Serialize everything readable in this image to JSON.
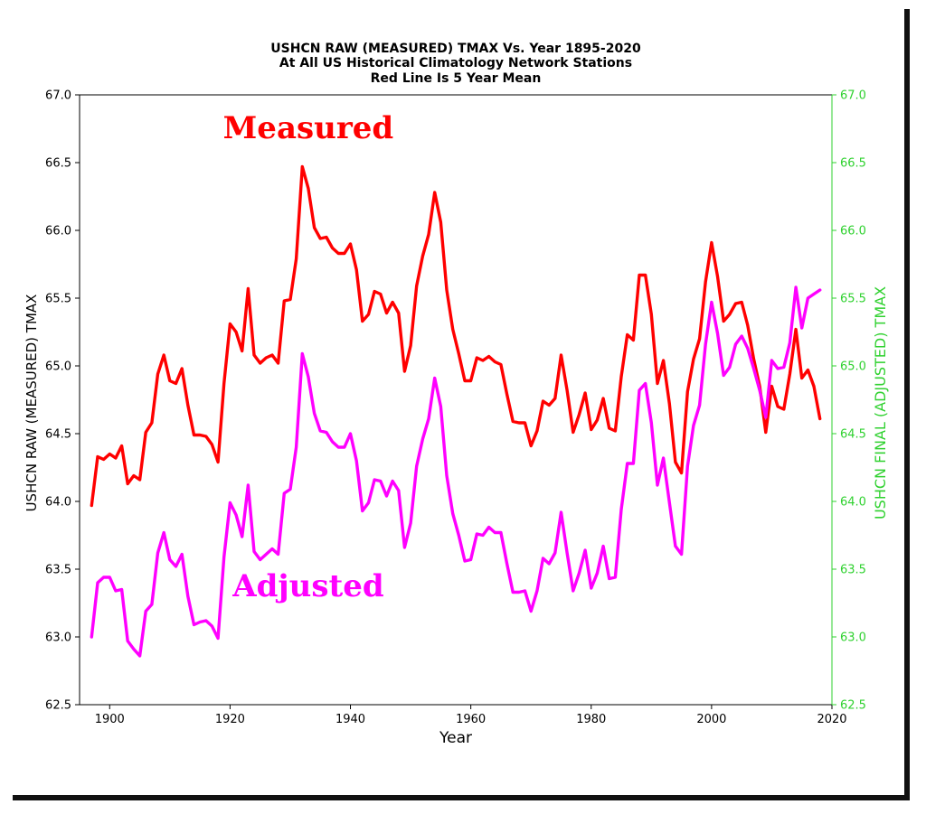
{
  "chart_data": {
    "type": "line",
    "title_lines": [
      "USHCN RAW (MEASURED) TMAX Vs. Year 1895-2020",
      "At All US Historical Climatology Network Stations",
      "Red Line Is 5 Year Mean"
    ],
    "xlabel": "Year",
    "ylabel": "USHCN RAW (MEASURED) TMAX",
    "ylabel_right": "USHCN FINAL (ADJUSTED) TMAX",
    "xlim": [
      1895,
      2020
    ],
    "ylim": [
      62.5,
      67.0
    ],
    "ylim_right": [
      62.5,
      67.0
    ],
    "x_ticks": [
      "1900",
      "1920",
      "1940",
      "1960",
      "1980",
      "2000",
      "2020"
    ],
    "y_ticks": [
      "62.5",
      "63.0",
      "63.5",
      "64.0",
      "64.5",
      "65.0",
      "65.5",
      "66.0",
      "66.5",
      "67.0"
    ],
    "y_ticks_right": [
      "62.5",
      "63.0",
      "63.5",
      "64.0",
      "64.5",
      "65.0",
      "65.5",
      "66.0",
      "66.5",
      "67.0"
    ],
    "grid": false,
    "colors": {
      "measured": "#ff0000",
      "adjusted": "#ff00ff",
      "right_axis": "#2fd12f"
    },
    "annotations": [
      {
        "text": "Measured",
        "color": "#ff0000",
        "x": 1933,
        "y": 66.68
      },
      {
        "text": "Adjusted",
        "color": "#ff00ff",
        "x": 1933,
        "y": 63.3
      }
    ],
    "series": [
      {
        "key": "measured",
        "x": [
          1897,
          1898,
          1899,
          1900,
          1901,
          1902,
          1903,
          1904,
          1905,
          1906,
          1907,
          1908,
          1909,
          1910,
          1911,
          1912,
          1913,
          1914,
          1915,
          1916,
          1917,
          1918,
          1919,
          1920,
          1921,
          1922,
          1923,
          1924,
          1925,
          1926,
          1927,
          1928,
          1929,
          1930,
          1931,
          1932,
          1933,
          1934,
          1935,
          1936,
          1937,
          1938,
          1939,
          1940,
          1941,
          1942,
          1943,
          1944,
          1945,
          1946,
          1947,
          1948,
          1949,
          1950,
          1951,
          1952,
          1953,
          1954,
          1955,
          1956,
          1957,
          1958,
          1959,
          1960,
          1961,
          1962,
          1963,
          1964,
          1965,
          1966,
          1967,
          1968,
          1969,
          1970,
          1971,
          1972,
          1973,
          1974,
          1975,
          1976,
          1977,
          1978,
          1979,
          1980,
          1981,
          1982,
          1983,
          1984,
          1985,
          1986,
          1987,
          1988,
          1989,
          1990,
          1991,
          1992,
          1993,
          1994,
          1995,
          1996,
          1997,
          1998,
          1999,
          2000,
          2001,
          2002,
          2003,
          2004,
          2005,
          2006,
          2007,
          2008,
          2009,
          2010,
          2011,
          2012,
          2013,
          2014,
          2015,
          2016,
          2017,
          2018
        ],
        "y": [
          63.97,
          64.33,
          64.31,
          64.35,
          64.32,
          64.41,
          64.13,
          64.19,
          64.16,
          64.51,
          64.58,
          64.94,
          65.08,
          64.89,
          64.87,
          64.98,
          64.71,
          64.49,
          64.49,
          64.48,
          64.42,
          64.29,
          64.87,
          65.31,
          65.25,
          65.11,
          65.57,
          65.08,
          65.02,
          65.06,
          65.08,
          65.02,
          65.48,
          65.49,
          65.79,
          66.47,
          66.31,
          66.02,
          65.94,
          65.95,
          65.87,
          65.83,
          65.83,
          65.9,
          65.71,
          65.33,
          65.38,
          65.55,
          65.53,
          65.39,
          65.47,
          65.39,
          64.96,
          65.15,
          65.59,
          65.81,
          65.97,
          66.28,
          66.06,
          65.56,
          65.27,
          65.09,
          64.89,
          64.89,
          65.06,
          65.04,
          65.07,
          65.03,
          65.01,
          64.79,
          64.59,
          64.58,
          64.58,
          64.41,
          64.52,
          64.74,
          64.71,
          64.76,
          65.08,
          64.82,
          64.51,
          64.64,
          64.8,
          64.53,
          64.6,
          64.76,
          64.54,
          64.52,
          64.92,
          65.23,
          65.19,
          65.67,
          65.67,
          65.38,
          64.87,
          65.04,
          64.72,
          64.29,
          64.21,
          64.81,
          65.05,
          65.2,
          65.62,
          65.91,
          65.66,
          65.33,
          65.38,
          65.46,
          65.47,
          65.3,
          65.05,
          64.85,
          64.51,
          64.85,
          64.7,
          64.68,
          64.94,
          65.27,
          64.91,
          64.97,
          64.85,
          64.61
        ]
      },
      {
        "key": "adjusted",
        "x": [
          1897,
          1898,
          1899,
          1900,
          1901,
          1902,
          1903,
          1904,
          1905,
          1906,
          1907,
          1908,
          1909,
          1910,
          1911,
          1912,
          1913,
          1914,
          1915,
          1916,
          1917,
          1918,
          1919,
          1920,
          1921,
          1922,
          1923,
          1924,
          1925,
          1926,
          1927,
          1928,
          1929,
          1930,
          1931,
          1932,
          1933,
          1934,
          1935,
          1936,
          1937,
          1938,
          1939,
          1940,
          1941,
          1942,
          1943,
          1944,
          1945,
          1946,
          1947,
          1948,
          1949,
          1950,
          1951,
          1952,
          1953,
          1954,
          1955,
          1956,
          1957,
          1958,
          1959,
          1960,
          1961,
          1962,
          1963,
          1964,
          1965,
          1966,
          1967,
          1968,
          1969,
          1970,
          1971,
          1972,
          1973,
          1974,
          1975,
          1976,
          1977,
          1978,
          1979,
          1980,
          1981,
          1982,
          1983,
          1984,
          1985,
          1986,
          1987,
          1988,
          1989,
          1990,
          1991,
          1992,
          1993,
          1994,
          1995,
          1996,
          1997,
          1998,
          1999,
          2000,
          2001,
          2002,
          2003,
          2004,
          2005,
          2006,
          2007,
          2008,
          2009,
          2010,
          2011,
          2012,
          2013,
          2014,
          2015,
          2016,
          2017,
          2018
        ],
        "y": [
          63.0,
          63.4,
          63.44,
          63.44,
          63.34,
          63.35,
          62.97,
          62.91,
          62.86,
          63.19,
          63.24,
          63.62,
          63.77,
          63.57,
          63.52,
          63.61,
          63.3,
          63.09,
          63.11,
          63.12,
          63.08,
          62.99,
          63.59,
          63.99,
          63.9,
          63.74,
          64.12,
          63.63,
          63.57,
          63.61,
          63.65,
          63.61,
          64.06,
          64.09,
          64.4,
          65.09,
          64.92,
          64.65,
          64.52,
          64.51,
          64.44,
          64.4,
          64.4,
          64.5,
          64.3,
          63.93,
          63.99,
          64.16,
          64.15,
          64.04,
          64.15,
          64.08,
          63.66,
          63.84,
          64.26,
          64.46,
          64.61,
          64.91,
          64.7,
          64.19,
          63.91,
          63.75,
          63.56,
          63.57,
          63.76,
          63.75,
          63.81,
          63.77,
          63.77,
          63.54,
          63.33,
          63.33,
          63.34,
          63.19,
          63.34,
          63.58,
          63.54,
          63.62,
          63.92,
          63.62,
          63.34,
          63.47,
          63.64,
          63.36,
          63.47,
          63.67,
          63.43,
          63.44,
          63.94,
          64.28,
          64.28,
          64.82,
          64.87,
          64.58,
          64.12,
          64.32,
          63.99,
          63.67,
          63.61,
          64.26,
          64.56,
          64.71,
          65.16,
          65.47,
          65.24,
          64.93,
          64.99,
          65.16,
          65.22,
          65.13,
          64.98,
          64.82,
          64.62,
          65.04,
          64.98,
          64.99,
          65.17,
          65.58,
          65.28,
          65.5,
          65.53,
          65.56
        ]
      }
    ]
  }
}
